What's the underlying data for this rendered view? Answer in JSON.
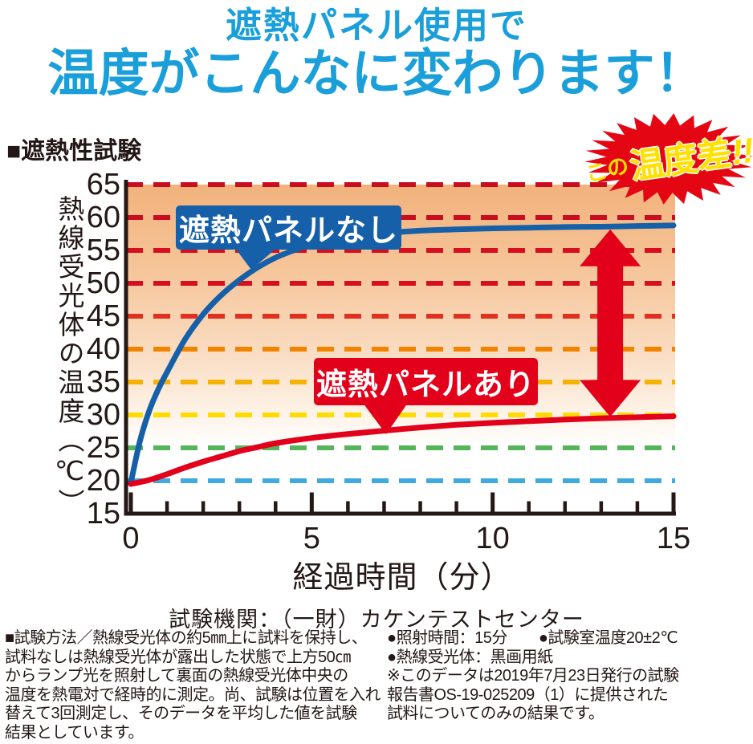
{
  "header": {
    "line1": "遮熱パネル使用で",
    "line2": "温度がこんなに変わります！"
  },
  "section_title": "■遮熱性試験",
  "badge": {
    "prefix": "この",
    "main": "温度差",
    "bang": "!!"
  },
  "chart_data": {
    "type": "line",
    "xlabel": "経過時間（分）",
    "ylabel": "熱線受光体の温度（℃）",
    "xlim": [
      0,
      15
    ],
    "ylim": [
      15,
      65
    ],
    "x_ticks": [
      0,
      5,
      10,
      15
    ],
    "x_minor_tick_step": 1,
    "y_ticks": [
      65,
      60,
      55,
      50,
      45,
      40,
      35,
      30,
      25,
      20,
      15
    ],
    "grid": "horizontal-dashed",
    "gridlines": [
      {
        "y": 65,
        "color": "#C90E21"
      },
      {
        "y": 60,
        "color": "#C90E21"
      },
      {
        "y": 55,
        "color": "#D50F1F"
      },
      {
        "y": 50,
        "color": "#D50F1F"
      },
      {
        "y": 45,
        "color": "#E03020"
      },
      {
        "y": 40,
        "color": "#F08300"
      },
      {
        "y": 35,
        "color": "#F6B200"
      },
      {
        "y": 30,
        "color": "#FFDB00"
      },
      {
        "y": 25,
        "color": "#55B55A"
      },
      {
        "y": 20,
        "color": "#3FA9E0"
      }
    ],
    "series": [
      {
        "name": "遮熱パネルなし",
        "color": "#1560A8",
        "x": [
          0,
          0.25,
          0.5,
          0.75,
          1,
          1.5,
          2,
          2.5,
          3,
          3.5,
          4,
          4.5,
          5,
          6,
          7,
          8,
          9,
          10,
          11,
          12,
          13,
          14,
          15
        ],
        "y": [
          19.7,
          26,
          30.5,
          33.8,
          36.5,
          41.5,
          45.3,
          48.2,
          50.5,
          52.4,
          53.9,
          55,
          55.9,
          57,
          57.6,
          58,
          58.2,
          58.35,
          58.45,
          58.55,
          58.6,
          58.7,
          58.8
        ]
      },
      {
        "name": "遮熱パネルあり",
        "color": "#E3001B",
        "x": [
          0,
          0.5,
          1,
          1.5,
          2,
          2.5,
          3,
          3.5,
          4,
          5,
          6,
          7,
          8,
          9,
          10,
          11,
          12,
          13,
          14,
          15
        ],
        "y": [
          19.5,
          20.1,
          21,
          22,
          22.9,
          23.7,
          24.5,
          25.1,
          25.7,
          26.5,
          27.1,
          27.6,
          28.1,
          28.5,
          28.8,
          29.05,
          29.3,
          29.5,
          29.65,
          29.8
        ]
      }
    ],
    "annotations": {
      "diff_arrow": {
        "x": 13.25,
        "y_top": 58.2,
        "y_bottom": 29.7,
        "color": "#E3001B"
      }
    }
  },
  "test_org": "試験機関：（一財）カケンテストセンター",
  "footer": {
    "left_lines": [
      "■試験方法／熱線受光体の約5㎜上に試料を保持し、",
      "試料なしは熱線受光体が露出した状態で上方50㎝",
      "からランプ光を照射して裏面の熱線受光体中央の",
      "温度を熱電対で経時的に測定。尚、試験は位置を入れ",
      "替えて3回測定し、そのデータを平均した値を試験",
      "結果としています。"
    ],
    "right_lines": [
      "●照射時間：15分　　●試験室温度20±2℃",
      "●熱線受光体：黒画用紙",
      "※このデータは2019年7月23日発行の試験",
      "報告書OS-19-025209（1）に提供された",
      "試料についてのみの結果です。"
    ]
  },
  "colors": {
    "title_blue": "#1A9FDA",
    "panel_blue": "#1560A8",
    "panel_red": "#E3001B",
    "badge_red": "#E40613",
    "badge_yellow": "#FFE100",
    "text_black": "#231815"
  }
}
